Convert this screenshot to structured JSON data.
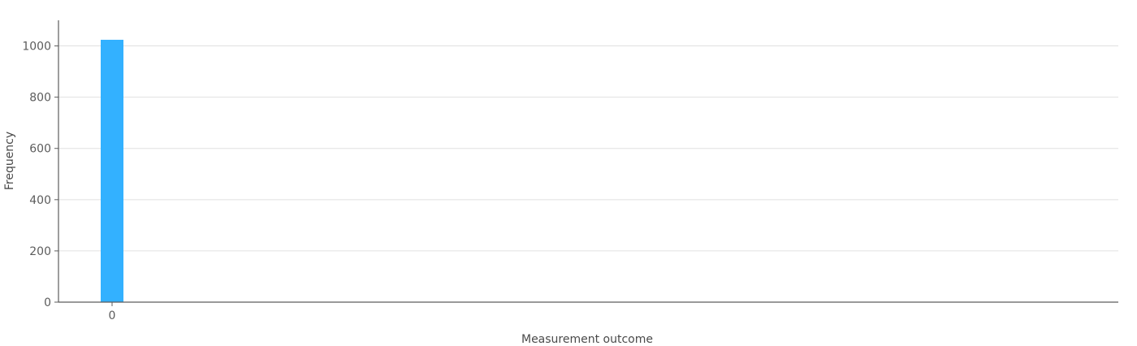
{
  "chart_data": {
    "type": "bar",
    "title": "",
    "xlabel": "Measurement outcome",
    "ylabel": "Frequency",
    "categories": [
      "0"
    ],
    "values": [
      1024
    ],
    "ylim": [
      0,
      1100
    ],
    "yticks": [
      0,
      200,
      400,
      600,
      800,
      1000
    ],
    "grid": true,
    "colors": {
      "bar": "#33b1ff",
      "grid": "#e0e0e0",
      "axis": "#5c5c5c"
    }
  }
}
